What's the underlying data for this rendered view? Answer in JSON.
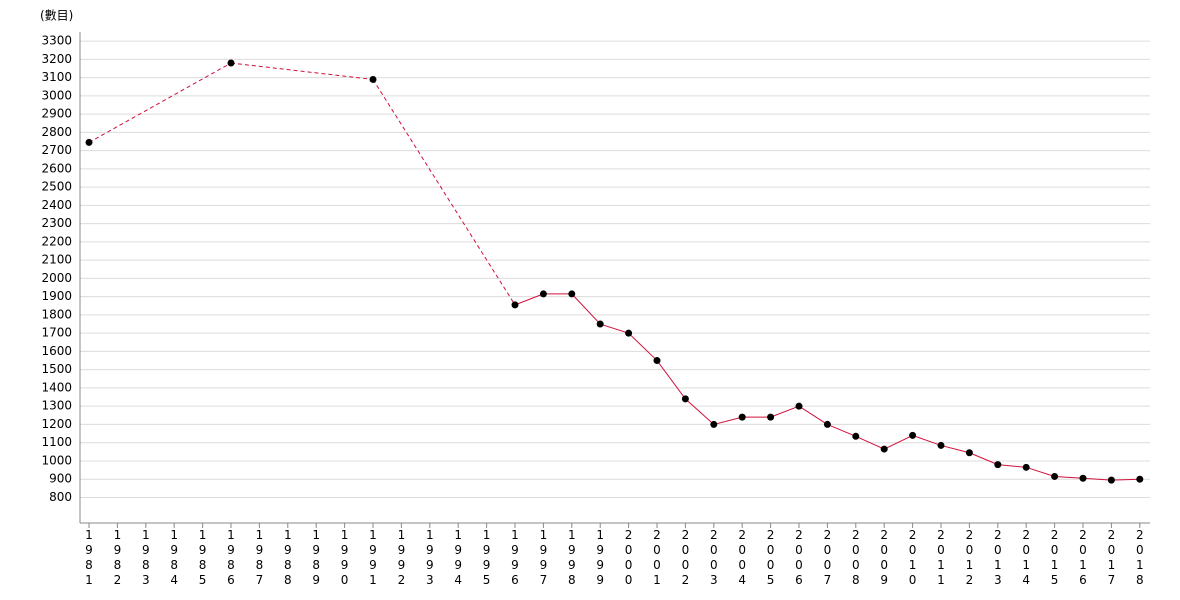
{
  "chart_data": {
    "type": "line",
    "y_label": "(數目)",
    "categories": [
      "1981",
      "1982",
      "1983",
      "1984",
      "1985",
      "1986",
      "1987",
      "1988",
      "1989",
      "1990",
      "1991",
      "1992",
      "1993",
      "1994",
      "1995",
      "1996",
      "1997",
      "1998",
      "1999",
      "2000",
      "2001",
      "2002",
      "2003",
      "2004",
      "2005",
      "2006",
      "2007",
      "2008",
      "2009",
      "2010",
      "2011",
      "2012",
      "2013",
      "2014",
      "2015",
      "2016",
      "2017",
      "2018"
    ],
    "values": [
      2745,
      null,
      null,
      null,
      null,
      3180,
      null,
      null,
      null,
      null,
      3090,
      null,
      null,
      null,
      null,
      1855,
      1915,
      1915,
      1750,
      1700,
      1550,
      1340,
      1200,
      1240,
      1240,
      1300,
      1200,
      1135,
      1065,
      1140,
      1085,
      1045,
      980,
      965,
      915,
      905,
      895,
      900
    ],
    "color": "#d0103a",
    "marker_color": "#000000",
    "ylim": [
      660,
      3350
    ],
    "yticks": [
      800,
      900,
      1000,
      1100,
      1200,
      1300,
      1400,
      1500,
      1600,
      1700,
      1800,
      1900,
      2000,
      2100,
      2200,
      2300,
      2400,
      2500,
      2600,
      2700,
      2800,
      2900,
      3000,
      3100,
      3200,
      3300
    ],
    "grid": true
  }
}
